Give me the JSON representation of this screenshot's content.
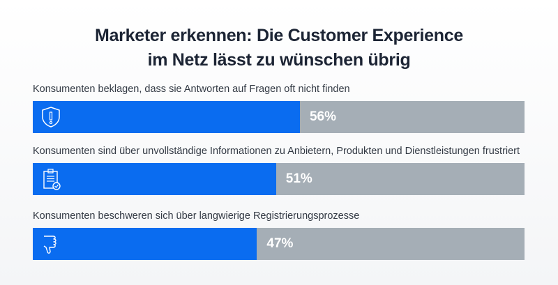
{
  "chart_data": {
    "type": "bar",
    "orientation": "horizontal",
    "title_lines": [
      "Marketer erkennen: Die Customer Experience",
      "im Netz lässt zu wünschen übrig"
    ],
    "categories": [
      "Konsumenten beklagen, dass sie Antworten auf Fragen oft nicht finden",
      "Konsumenten sind über unvollständige Informationen zu Anbietern, Produkten und Dienstleistungen frustriert",
      "Konsumenten beschweren sich über langwierige Registrierungsprozesse"
    ],
    "values": [
      56,
      51,
      47
    ],
    "value_labels": [
      "56%",
      "51%",
      "47%"
    ],
    "icons": [
      "shield-alert-icon",
      "clipboard-check-icon",
      "thumbs-down-icon"
    ],
    "xlim": [
      0,
      100
    ],
    "colors": {
      "fill": "#0a6cf0",
      "track": "#a5aeb6",
      "title": "#1c2434"
    }
  }
}
